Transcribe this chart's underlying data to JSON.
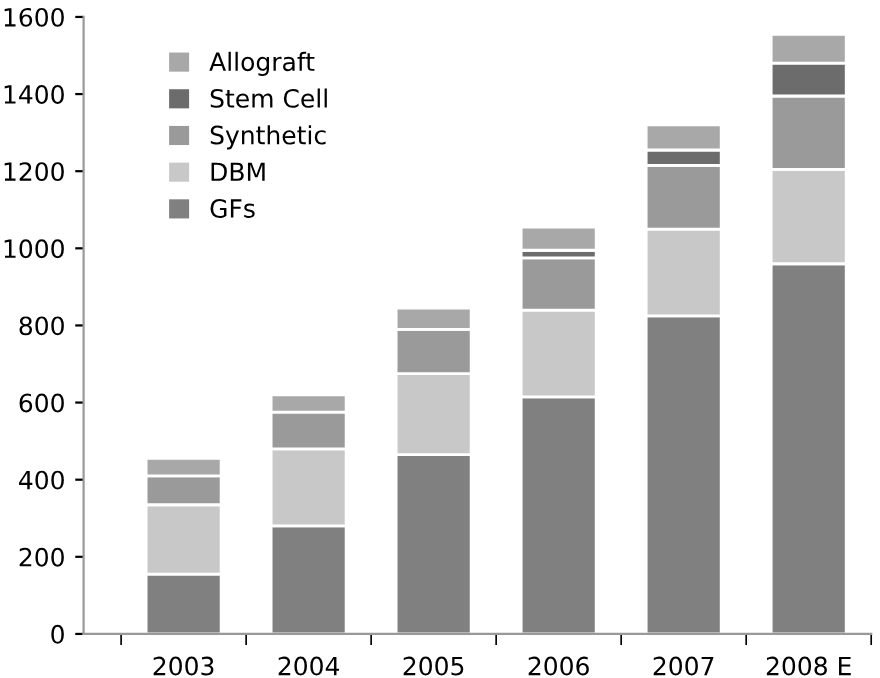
{
  "chart_data": {
    "type": "bar",
    "stacked": true,
    "categories": [
      "2003",
      "2004",
      "2005",
      "2006",
      "2007",
      "2008 E"
    ],
    "series": [
      {
        "name": "GFs",
        "color": "#808080",
        "values": [
          155,
          280,
          465,
          615,
          825,
          960
        ]
      },
      {
        "name": "DBM",
        "color": "#c8c8c8",
        "values": [
          180,
          200,
          210,
          225,
          225,
          245
        ]
      },
      {
        "name": "Synthetic",
        "color": "#9a9a9a",
        "values": [
          75,
          95,
          115,
          135,
          165,
          190
        ]
      },
      {
        "name": "Stem Cell",
        "color": "#6c6c6c",
        "values": [
          0,
          0,
          0,
          20,
          40,
          85
        ]
      },
      {
        "name": "Allograft",
        "color": "#a8a8a8",
        "values": [
          45,
          45,
          55,
          60,
          65,
          75
        ]
      }
    ],
    "ylim": [
      0,
      1600
    ],
    "yticks": [
      0,
      200,
      400,
      600,
      800,
      1000,
      1200,
      1400,
      1600
    ],
    "grid": false,
    "legend": "top left"
  }
}
